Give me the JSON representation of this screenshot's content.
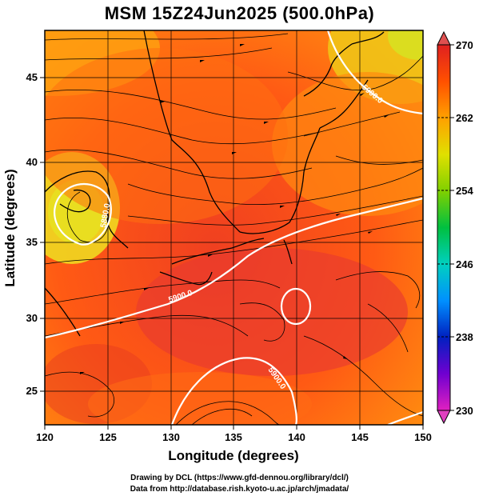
{
  "title": "MSM 15Z24Jun2025 (500.0hPa)",
  "map": {
    "xlabel": "Longitude (degrees)",
    "ylabel": "Latitude  (degrees)",
    "lon_ticks": [
      "120",
      "125",
      "130",
      "135",
      "140",
      "145",
      "150"
    ],
    "lat_ticks": [
      "25",
      "30",
      "35",
      "40",
      "45"
    ],
    "contour_labels": [
      "5900.0",
      "5880.0",
      "5900.0",
      "5900.0"
    ],
    "scale_gradient_colors": [
      "#e020c0",
      "#7000d0",
      "#0020c0",
      "#0090ff",
      "#00d0c0",
      "#00c040",
      "#80d000",
      "#e0e000",
      "#ffa000",
      "#ff5000",
      "#e02020"
    ]
  },
  "colorbar": {
    "ticks": [
      "270",
      "262",
      "254",
      "246",
      "238",
      "230"
    ]
  },
  "credits": {
    "line1": "Drawing by DCL (https://www.gfd-dennou.org/library/dcl/)",
    "line2": "Data from http://database.rish.kyoto-u.ac.jp/arch/jmadata/"
  }
}
